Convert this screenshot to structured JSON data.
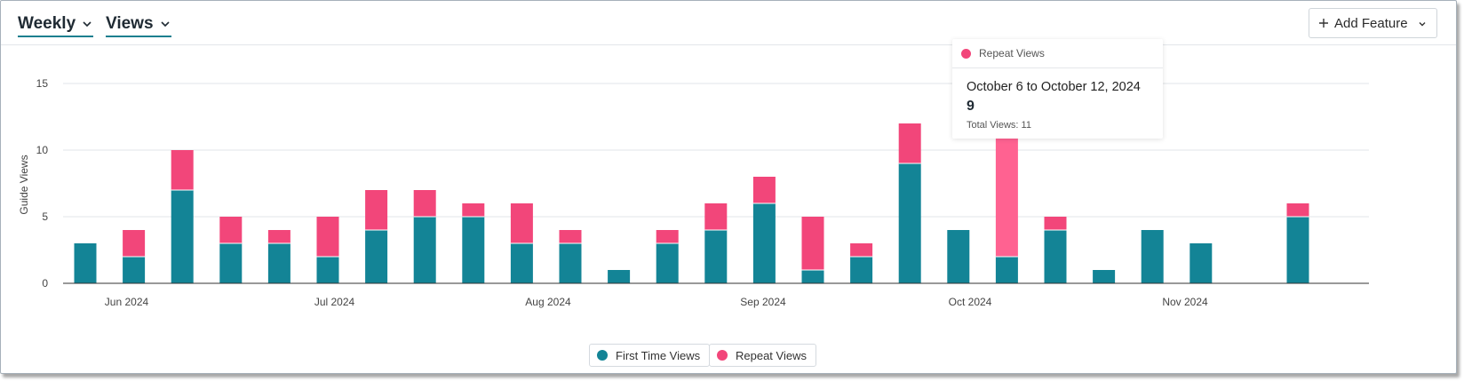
{
  "header": {
    "period_label": "Weekly",
    "metric_label": "Views",
    "add_feature_label": "Add Feature"
  },
  "colors": {
    "first_time": "#138496",
    "repeat": "#f2467a",
    "repeat_highlight": "#ff6291",
    "accent": "#1b7f8f"
  },
  "chart_data": {
    "type": "bar",
    "stacked": true,
    "ylabel": "Guide Views",
    "xlabel": "",
    "ylim": [
      0,
      17
    ],
    "yticks": [
      0,
      5,
      10,
      15
    ],
    "grid": true,
    "legend_position": "bottom-center",
    "month_labels": [
      "Jun 2024",
      "Jul 2024",
      "Aug 2024",
      "Sep 2024",
      "Oct 2024",
      "Nov 2024"
    ],
    "categories": [
      "2024-05-26",
      "2024-06-02",
      "2024-06-09",
      "2024-06-16",
      "2024-06-23",
      "2024-06-30",
      "2024-07-07",
      "2024-07-14",
      "2024-07-21",
      "2024-07-28",
      "2024-08-04",
      "2024-08-11",
      "2024-08-18",
      "2024-08-25",
      "2024-09-01",
      "2024-09-08",
      "2024-09-15",
      "2024-09-22",
      "2024-09-29",
      "2024-10-06",
      "2024-10-13",
      "2024-10-20",
      "2024-10-27",
      "2024-11-03",
      "2024-11-10",
      "2024-11-17"
    ],
    "series": [
      {
        "name": "First Time Views",
        "values": [
          3,
          2,
          7,
          3,
          3,
          2,
          4,
          5,
          5,
          3,
          3,
          1,
          3,
          4,
          6,
          1,
          2,
          9,
          4,
          2,
          4,
          1,
          4,
          3,
          0,
          5
        ]
      },
      {
        "name": "Repeat Views",
        "values": [
          0,
          2,
          3,
          2,
          1,
          3,
          3,
          2,
          1,
          3,
          1,
          0,
          1,
          2,
          2,
          4,
          1,
          3,
          0,
          9,
          1,
          0,
          0,
          0,
          0,
          1
        ]
      }
    ],
    "highlighted_index": 19
  },
  "legend": {
    "items": [
      {
        "label": "First Time Views"
      },
      {
        "label": "Repeat Views"
      }
    ]
  },
  "tooltip": {
    "series_name": "Repeat Views",
    "date_range": "October 6 to October 12, 2024",
    "value": "9",
    "total_text": "Total Views: 11"
  }
}
